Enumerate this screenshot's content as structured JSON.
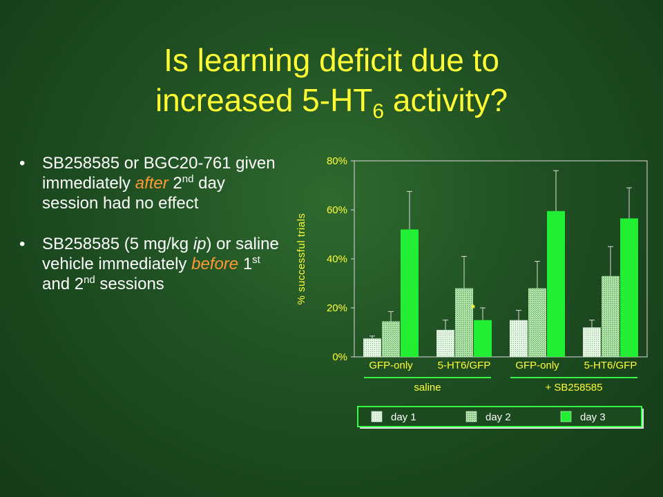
{
  "title": {
    "line1": "Is learning deficit due to",
    "line2_pre": "increased 5-HT",
    "line2_sub": "6",
    "line2_post": " activity?"
  },
  "bullets": [
    {
      "p1": "SB258585 or BGC20-761 given immediately ",
      "em1": "after",
      "p2": " 2",
      "sup1": "nd",
      "p3": " day session had no effect"
    },
    {
      "p1": "SB258585 (5 mg/kg ",
      "it1": "ip",
      "p2": ") or saline vehicle immediately ",
      "em1": "before",
      "p3": " 1",
      "sup1": "st",
      "p4": " and 2",
      "sup2": "nd",
      "p5": " sessions"
    }
  ],
  "chart_data": {
    "type": "bar",
    "ylabel": "% successful trials",
    "ylim": [
      0,
      80
    ],
    "yticks": [
      0,
      20,
      40,
      60,
      80
    ],
    "ytick_labels": [
      "0%",
      "20%",
      "40%",
      "60%",
      "80%"
    ],
    "categories": [
      "GFP-only",
      "5-HT6/GFP",
      "GFP-only",
      "5-HT6/GFP"
    ],
    "groups": [
      {
        "label": "saline",
        "categories": [
          0,
          1
        ]
      },
      {
        "label": "+ SB258585",
        "categories": [
          2,
          3
        ]
      }
    ],
    "series": [
      {
        "name": "day 1",
        "values": [
          7.5,
          11,
          15,
          12
        ],
        "errors": [
          1,
          4,
          4,
          3
        ]
      },
      {
        "name": "day 2",
        "values": [
          14.5,
          28,
          28,
          33
        ],
        "errors": [
          4,
          13,
          11,
          12
        ]
      },
      {
        "name": "day 3",
        "values": [
          52,
          15,
          59.5,
          56.5
        ],
        "errors": [
          15.5,
          5,
          16.5,
          12.5
        ]
      }
    ],
    "annotations": [
      {
        "text": "*",
        "category": 1,
        "series": 2
      }
    ],
    "legend_placement": "bottom",
    "colors": {
      "day1": "#e6f5e6",
      "day1_dot": "#6fbf6f",
      "day2": "#b8e6b0",
      "day2_dot": "#4f9f4f",
      "day3": "#22ee33",
      "text": "#ffff33",
      "legend_text": "#ffffff",
      "axis": "#dddddd",
      "group_line": "#33ff44"
    }
  }
}
